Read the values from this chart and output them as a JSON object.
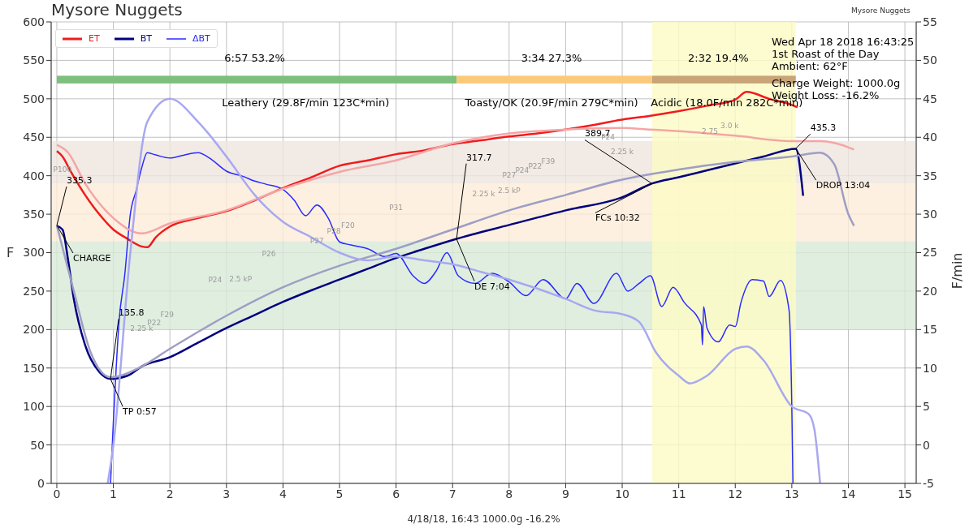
{
  "chart_data": {
    "type": "line",
    "title": "Mysore Nuggets",
    "subtitle": "Mysore Nuggets",
    "xlabel": "4/18/18, 16:43   1000.0g   -16.2%",
    "ylabel": "F",
    "y2label": "F/min",
    "xlim": [
      -0.1,
      15.2
    ],
    "xticks": [
      0,
      1,
      2,
      3,
      4,
      5,
      6,
      7,
      8,
      9,
      10,
      11,
      12,
      13,
      14,
      15
    ],
    "ylim": [
      0,
      600
    ],
    "yticks": [
      0,
      50,
      100,
      150,
      200,
      250,
      300,
      350,
      400,
      450,
      500,
      550,
      600
    ],
    "y2lim": [
      -5,
      55
    ],
    "y2ticks": [
      -5,
      0,
      5,
      10,
      15,
      20,
      25,
      30,
      35,
      40,
      45,
      50,
      55
    ],
    "grid": true,
    "legend": "top left",
    "marker": "none",
    "line_style": "solid",
    "series": [
      {
        "name": "ET",
        "color": "#f21b1b",
        "x": [
          0,
          0.1,
          0.25,
          0.5,
          0.75,
          1,
          1.25,
          1.5,
          1.6,
          1.75,
          2,
          2.5,
          3,
          3.5,
          4,
          4.5,
          5,
          5.5,
          6,
          6.5,
          7,
          7.5,
          8,
          8.5,
          9,
          9.5,
          10,
          10.5,
          11,
          11.5,
          12,
          12.2,
          12.6,
          13,
          13.1
        ],
        "values": [
          432,
          425,
          405,
          375,
          350,
          330,
          318,
          308,
          307,
          320,
          334,
          345,
          354,
          368,
          384,
          398,
          413,
          420,
          428,
          433,
          441,
          446,
          451,
          455,
          460,
          466,
          473,
          478,
          484,
          491,
          499,
          509,
          500,
          492,
          489
        ]
      },
      {
        "name": "BT",
        "color": "#00007f",
        "x": [
          0,
          0.1,
          0.2,
          0.3,
          0.5,
          0.75,
          0.95,
          1.25,
          1.5,
          2,
          2.5,
          3,
          3.5,
          4,
          4.5,
          5,
          5.5,
          6,
          6.5,
          7.07,
          8,
          9,
          10,
          10.53,
          11,
          11.5,
          12,
          12.5,
          13.07,
          13.2
        ],
        "values": [
          335,
          330,
          290,
          240,
          180,
          145,
          136,
          140,
          152,
          164,
          183,
          202,
          219,
          236,
          251,
          265,
          279,
          293,
          305,
          318,
          336,
          355,
          372,
          390,
          398,
          407,
          416,
          425,
          435,
          374
        ]
      },
      {
        "name": "ΔBT",
        "color": "#2a2aff",
        "axis": "y2",
        "x": [
          0.95,
          1,
          1.05,
          1.1,
          1.2,
          1.3,
          1.4,
          1.5,
          1.6,
          1.75,
          2,
          2.2,
          2.5,
          2.7,
          3,
          3.3,
          3.5,
          3.7,
          4,
          4.2,
          4.4,
          4.6,
          4.8,
          5,
          5.2,
          5.5,
          5.8,
          6,
          6.3,
          6.5,
          6.7,
          6.9,
          7.1,
          7.4,
          7.7,
          8,
          8.3,
          8.6,
          9,
          9.2,
          9.5,
          9.9,
          10.1,
          10.3,
          10.5,
          10.7,
          10.9,
          11.1,
          11.4,
          11.42,
          11.44,
          11.5,
          11.7,
          11.9,
          12,
          12.1,
          12.3,
          12.5,
          12.6,
          12.8,
          12.95,
          13,
          13.02
        ],
        "values": [
          -5,
          3,
          10,
          16,
          22,
          30,
          33,
          36,
          38,
          37.7,
          37.3,
          37.6,
          38,
          37.3,
          35.6,
          34.9,
          34.3,
          33.9,
          33.2,
          31.8,
          29.8,
          31.2,
          29.5,
          26.4,
          26,
          25.5,
          24.5,
          24.9,
          22,
          21,
          22.5,
          25,
          22,
          21,
          22.3,
          21.2,
          19.4,
          21.5,
          19,
          21,
          18.4,
          22.3,
          20,
          21,
          22,
          18,
          20.5,
          18.5,
          15.6,
          13,
          18,
          15.2,
          13.4,
          15.6,
          15.4,
          18.5,
          21.5,
          21.3,
          19.3,
          21.4,
          17.6,
          4.9,
          -5
        ]
      },
      {
        "color": "#f5a5a5",
        "x": [
          0,
          0.2,
          0.5,
          1,
          1.5,
          2,
          3,
          4,
          5,
          6,
          7,
          8,
          9,
          10,
          10.5,
          11,
          12,
          13,
          13.5,
          14,
          14.1
        ],
        "values": [
          440,
          430,
          390,
          345,
          325,
          338,
          355,
          383,
          405,
          420,
          442,
          455,
          460,
          462,
          460,
          458,
          452,
          445,
          445,
          437,
          434
        ]
      },
      {
        "color": "#9e9ec4",
        "x": [
          0,
          0.3,
          0.6,
          0.95,
          1.5,
          2,
          3,
          4,
          5,
          6,
          7,
          8,
          9,
          10,
          11,
          12,
          13,
          13.5,
          13.75,
          14,
          14.1
        ],
        "values": [
          335,
          250,
          170,
          138,
          152,
          175,
          218,
          255,
          283,
          305,
          330,
          355,
          375,
          395,
          408,
          418,
          425,
          430,
          415,
          350,
          335
        ]
      },
      {
        "color": "#a8a8f0",
        "axis": "y2",
        "x": [
          0.9,
          1,
          1.3,
          1.6,
          2,
          2.5,
          3,
          3.5,
          4,
          4.5,
          5,
          5.5,
          6,
          6.5,
          7,
          7.5,
          8,
          9,
          9.5,
          10,
          10.3,
          10.6,
          11,
          11.2,
          11.5,
          12,
          12.2,
          12.5,
          13,
          13.3,
          13.4,
          13.5
        ],
        "values": [
          -5,
          0,
          25,
          42,
          45,
          42,
          37.5,
          32.5,
          29,
          27,
          25,
          24,
          24.5,
          24,
          23.5,
          22.5,
          21.5,
          19,
          17.5,
          17,
          16,
          12,
          9,
          8,
          9,
          12.5,
          12.8,
          11,
          5,
          4,
          2,
          -5
        ]
      }
    ],
    "bands": [
      {
        "axis": "y",
        "from": 200,
        "to": 315,
        "color": "#d8ead8"
      },
      {
        "axis": "y",
        "from": 315,
        "to": 390,
        "color": "#fdecd8"
      },
      {
        "axis": "y",
        "from": 390,
        "to": 445,
        "color": "#ede5df"
      },
      {
        "axis": "x",
        "from": 10.53,
        "to": 13.07,
        "color": "#fdfbc4"
      }
    ],
    "annotations": [
      {
        "text": "CHARGE",
        "x": 0,
        "y": 335.3
      },
      {
        "text": "335.3",
        "x": 0,
        "y": 335.3
      },
      {
        "text": "TP 0:57",
        "x": 0.95,
        "y": 135.8
      },
      {
        "text": "135.8",
        "x": 0.95,
        "y": 135.8
      },
      {
        "text": "DE 7:04",
        "x": 7.07,
        "y": 317.7
      },
      {
        "text": "317.7",
        "x": 7.07,
        "y": 317.7
      },
      {
        "text": "FCs 10:32",
        "x": 10.53,
        "y": 389.7
      },
      {
        "text": "389.7",
        "x": 10.53,
        "y": 389.7
      },
      {
        "text": "DROP 13:04",
        "x": 13.07,
        "y": 435.3
      },
      {
        "text": "435.3",
        "x": 13.07,
        "y": 435.3
      },
      "6:57  53.2%",
      "Leathery (29.8F/min  123C*min)",
      "3:34  27.3%",
      "Toasty/OK (20.9F/min  279C*min)",
      "2:32  19.4%",
      "Acidic (18.0F/min  282C*min)",
      "Wed Apr 18 2018 16:43:25",
      "1st Roast of the Day",
      "Ambient: 62°F",
      "Charge Weight: 1000.0g",
      "Weight Loss: -16.2%",
      "P100",
      "2.25 k",
      "P22",
      "F29",
      "P24",
      "2.5 kP",
      "P26",
      "P27",
      "P28",
      "F20",
      "P31",
      "2.25 k",
      "2.5 kP",
      "P27",
      "P24",
      "P22",
      "F39",
      "P24",
      "2.25 k",
      "2.75",
      "3.0 k"
    ]
  }
}
